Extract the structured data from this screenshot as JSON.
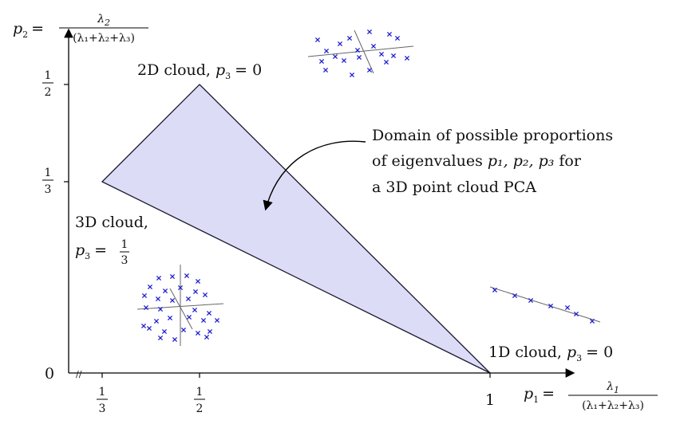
{
  "axes": {
    "y_label": {
      "var": "p",
      "sub": "2",
      "eq": "=",
      "num": "λ",
      "num_sub": "2",
      "den": "(λ₁+λ₂+λ₃)"
    },
    "x_label": {
      "var": "p",
      "sub": "1",
      "eq": "=",
      "num": "λ",
      "num_sub": "1",
      "den": "(λ₁+λ₂+λ₃)"
    },
    "origin": "0",
    "break_mark": "//",
    "x_ticks": [
      {
        "num": "1",
        "den": "3"
      },
      {
        "num": "1",
        "den": "2"
      },
      {
        "value": "1"
      }
    ],
    "y_ticks": [
      {
        "num": "1",
        "den": "2"
      },
      {
        "num": "1",
        "den": "3"
      }
    ]
  },
  "labels": {
    "cloud_2d": {
      "text": "2D cloud,",
      "var": "p",
      "sub": "3",
      "eq": "= 0"
    },
    "cloud_3d_line1": "3D cloud,",
    "cloud_3d_line2": {
      "var": "p",
      "sub": "3",
      "eq": "=",
      "num": "1",
      "den": "3"
    },
    "cloud_1d": {
      "text": "1D cloud,",
      "var": "p",
      "sub": "3",
      "eq": "= 0"
    },
    "domain_line1": "Domain of possible proportions",
    "domain_line2": {
      "text": "of eigenvalues",
      "vars": "p₁, p₂, p₃",
      "after": "for"
    },
    "domain_line3": "a 3D point cloud PCA"
  },
  "colors": {
    "fill": "#dcdcf7",
    "stroke": "#1a1a2e",
    "marker": "#1f1fcf",
    "axis": "#000000"
  },
  "icons": {
    "marker": "cross-marker",
    "arrow": "curved-arrow"
  }
}
